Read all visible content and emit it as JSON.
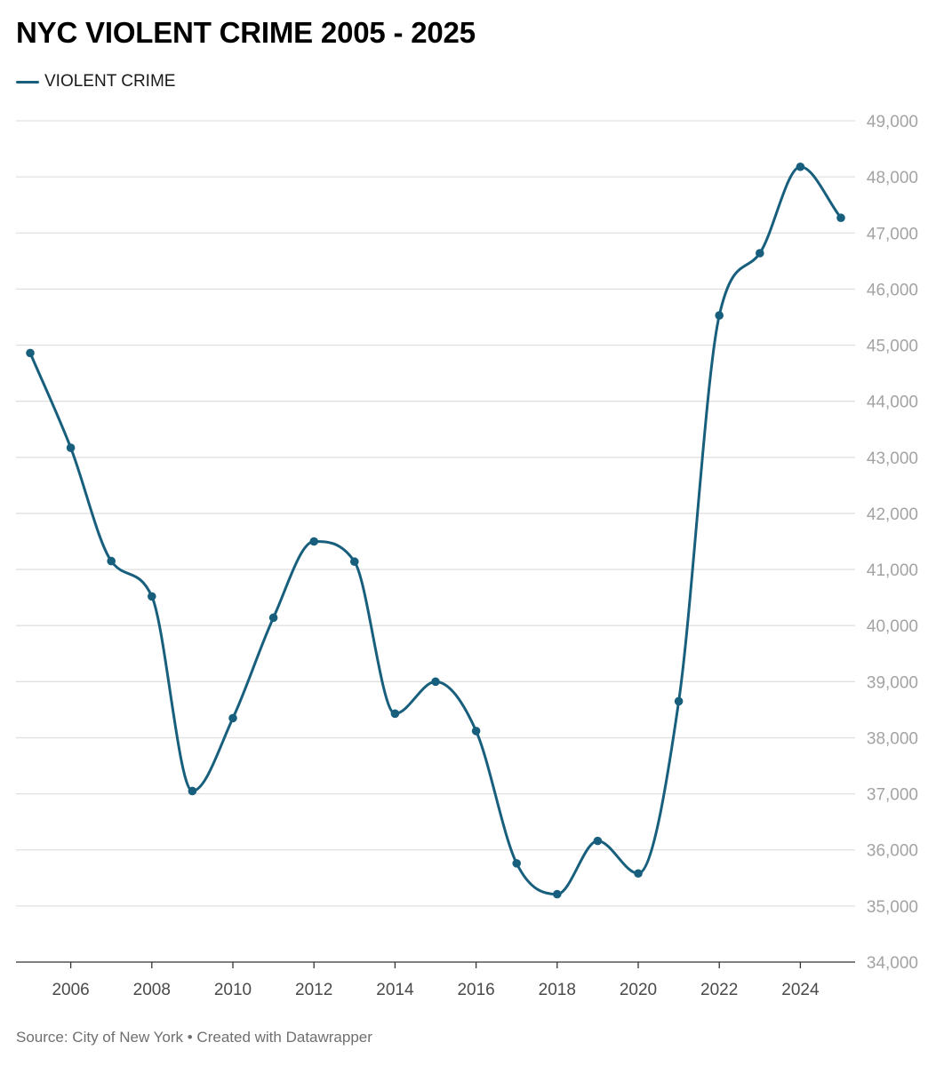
{
  "title": "NYC VIOLENT CRIME 2005 - 2025",
  "footer": {
    "source_text": "Source: City of New York • Created with Datawrapper"
  },
  "colors": {
    "series": "#175f7d",
    "grid": "#e0e0e0",
    "baseline": "#333333",
    "y_tick_text": "#a3a3a3",
    "x_tick_text": "#4a4a4a"
  },
  "chart_data": {
    "type": "line",
    "title": "NYC VIOLENT CRIME 2005 - 2025",
    "xlabel": "",
    "ylabel": "",
    "xlim": [
      2005,
      2025
    ],
    "ylim": [
      34000,
      49000
    ],
    "x_ticks": [
      2006,
      2008,
      2010,
      2012,
      2014,
      2016,
      2018,
      2020,
      2022,
      2024
    ],
    "y_ticks": [
      34000,
      35000,
      36000,
      37000,
      38000,
      39000,
      40000,
      41000,
      42000,
      43000,
      44000,
      45000,
      46000,
      47000,
      48000,
      49000
    ],
    "y_tick_labels": [
      "34,000",
      "35,000",
      "36,000",
      "37,000",
      "38,000",
      "39,000",
      "40,000",
      "41,000",
      "42,000",
      "43,000",
      "44,000",
      "45,000",
      "46,000",
      "47,000",
      "48,000",
      "49,000"
    ],
    "y_axis_position": "right",
    "grid": true,
    "legend_position": "top-left",
    "smooth": true,
    "markers": true,
    "series": [
      {
        "name": "VIOLENT CRIME",
        "color": "#175f7d",
        "x": [
          2005,
          2006,
          2007,
          2008,
          2009,
          2010,
          2011,
          2012,
          2013,
          2014,
          2015,
          2016,
          2017,
          2018,
          2019,
          2020,
          2021,
          2022,
          2023,
          2024,
          2025
        ],
        "values": [
          44860,
          43170,
          41150,
          40520,
          37050,
          38350,
          40140,
          41500,
          41140,
          38430,
          39000,
          38120,
          35760,
          35210,
          36160,
          35580,
          38650,
          45530,
          46640,
          48180,
          47270
        ]
      }
    ]
  }
}
